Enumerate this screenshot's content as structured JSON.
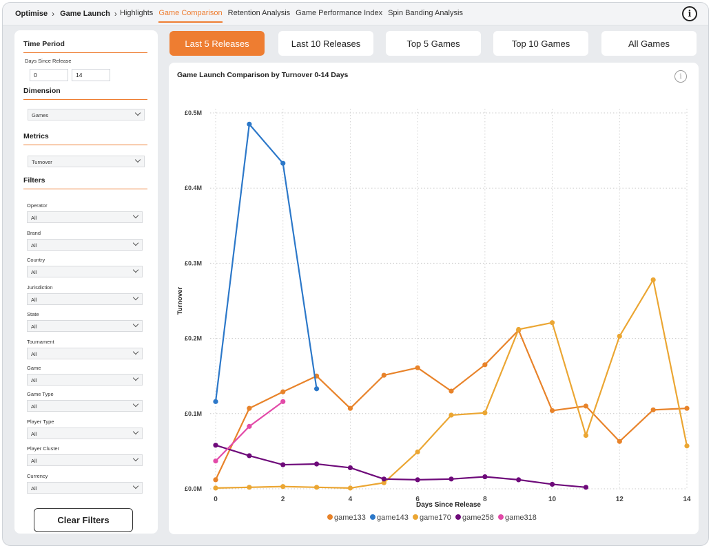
{
  "breadcrumb": {
    "items": [
      "Optimise",
      "Game Launch"
    ]
  },
  "nav": {
    "tabs": [
      "Highlights",
      "Game Comparison",
      "Retention Analysis",
      "Game Performance Index",
      "Spin Banding Analysis"
    ],
    "active": "Game Comparison"
  },
  "header": {
    "info_icon": "info-icon"
  },
  "sidebar": {
    "time_period": {
      "title": "Time Period",
      "label": "Days Since Release",
      "from": "0",
      "to": "14"
    },
    "dimension": {
      "title": "Dimension",
      "value": "Games"
    },
    "metrics": {
      "title": "Metrics",
      "value": "Turnover"
    },
    "filters": {
      "title": "Filters",
      "items": [
        {
          "label": "Operator",
          "value": "All"
        },
        {
          "label": "Brand",
          "value": "All"
        },
        {
          "label": "Country",
          "value": "All"
        },
        {
          "label": "Jurisdiction",
          "value": "All"
        },
        {
          "label": "State",
          "value": "All"
        },
        {
          "label": "Tournament",
          "value": "All"
        },
        {
          "label": "Game",
          "value": "All"
        },
        {
          "label": "Game Type",
          "value": "All"
        },
        {
          "label": "Player Type",
          "value": "All"
        },
        {
          "label": "Player Cluster",
          "value": "All"
        },
        {
          "label": "Currency",
          "value": "All"
        }
      ]
    },
    "clear_label": "Clear Filters"
  },
  "release_buttons": {
    "items": [
      "Last 5 Releases",
      "Last 10 Releases",
      "Top 5 Games",
      "Top 10 Games",
      "All Games"
    ],
    "active": "Last 5 Releases"
  },
  "colors": {
    "accent": "#EE7D31"
  },
  "chart_data": {
    "type": "line",
    "title": "Game Launch Comparison by Turnover 0-14 Days",
    "xlabel": "Days Since Release",
    "ylabel": "Turnover",
    "xlim": [
      0,
      14
    ],
    "ylim": [
      0,
      0.5
    ],
    "x_ticks": [
      "0",
      "2",
      "4",
      "6",
      "8",
      "10",
      "12",
      "14"
    ],
    "y_ticks": [
      "£0.0M",
      "£0.1M",
      "£0.2M",
      "£0.3M",
      "£0.4M",
      "£0.5M"
    ],
    "y_tick_values": [
      0,
      0.1,
      0.2,
      0.3,
      0.4,
      0.5
    ],
    "grid": true,
    "legend_position": "bottom",
    "series": [
      {
        "name": "game133",
        "color": "#E8832A",
        "x": [
          0,
          1,
          2,
          3,
          4,
          5,
          6,
          7,
          8,
          9,
          10,
          11,
          12,
          13,
          14
        ],
        "y": [
          0.012,
          0.107,
          0.129,
          0.15,
          0.107,
          0.151,
          0.161,
          0.13,
          0.165,
          0.211,
          0.104,
          0.11,
          0.063,
          0.105,
          0.107
        ]
      },
      {
        "name": "game143",
        "color": "#2C78C9",
        "x": [
          0,
          1,
          2,
          3
        ],
        "y": [
          0.116,
          0.485,
          0.433,
          0.133
        ]
      },
      {
        "name": "game170",
        "color": "#EBA633",
        "x": [
          0,
          1,
          2,
          3,
          4,
          5,
          6,
          7,
          8,
          9,
          10,
          11,
          12,
          13,
          14
        ],
        "y": [
          0.001,
          0.002,
          0.003,
          0.002,
          0.001,
          0.008,
          0.049,
          0.098,
          0.101,
          0.212,
          0.221,
          0.071,
          0.203,
          0.278,
          0.057
        ]
      },
      {
        "name": "game258",
        "color": "#6E0A7A",
        "x": [
          0,
          1,
          2,
          3,
          4,
          5,
          6,
          7,
          8,
          9,
          10,
          11
        ],
        "y": [
          0.058,
          0.044,
          0.032,
          0.033,
          0.028,
          0.013,
          0.012,
          0.013,
          0.016,
          0.012,
          0.006,
          0.002
        ]
      },
      {
        "name": "game318",
        "color": "#E24AA8",
        "x": [
          0,
          1,
          2
        ],
        "y": [
          0.037,
          0.083,
          0.116
        ]
      }
    ]
  }
}
